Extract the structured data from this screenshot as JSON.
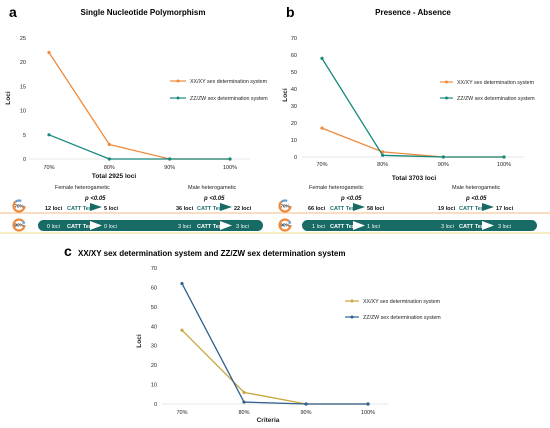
{
  "colors": {
    "xx_xy": "#ef8a3c",
    "zz_zw": "#17887d",
    "xx_xy_c": "#c8a63c",
    "zz_zw_c": "#2f5f8e",
    "bar_teal": "#176b64",
    "orange_line": "#f2a356",
    "yellow_line": "#e3d35c"
  },
  "panels": {
    "a": {
      "label": "a",
      "footer": {
        "total": "Total 2925 loci",
        "female_label": "Female heterogametic",
        "male_label": "Male heterogametic",
        "female_p": "p <0.05",
        "male_p": "p <0.05",
        "female_from": "12 loci",
        "female_to": "5 loci",
        "male_from": "36 loci",
        "male_to": "22 loci",
        "female_from_90": "0 loci",
        "female_to_90": "0 loci",
        "male_from_90": "3 loci",
        "male_to_90": "3 loci"
      }
    },
    "b": {
      "label": "b",
      "footer": {
        "total": "Total 3703 loci",
        "female_label": "Female heterogametic",
        "male_label": "Male heterogametic",
        "female_p": "p <0.05",
        "male_p": "p <0.05",
        "female_from": "66 loci",
        "female_to": "58 loci",
        "male_from": "19 loci",
        "male_to": "17 loci",
        "female_from_90": "1 loci",
        "female_to_90": "1 loci",
        "male_from_90": "3 loci",
        "male_to_90": "3 loci"
      }
    },
    "c": {
      "label": "c"
    }
  },
  "test_label": "CATT Test",
  "pie_labels": [
    "70%",
    "90%"
  ],
  "chart_data": [
    {
      "type": "line",
      "title": "Single Nucleotide Polymorphism",
      "xlabel": "",
      "ylabel": "Loci",
      "categories": [
        "70%",
        "80%",
        "90%",
        "100%"
      ],
      "ylim": [
        0,
        25
      ],
      "yticks": [
        0,
        5,
        10,
        15,
        20,
        25
      ],
      "legend_position": "right",
      "grid": false,
      "series": [
        {
          "name": "XX/XY sex determination system",
          "values": [
            22,
            3,
            0,
            0
          ]
        },
        {
          "name": "ZZ/ZW sex determination system",
          "values": [
            5,
            0,
            0,
            0
          ]
        }
      ]
    },
    {
      "type": "line",
      "title": "Presence - Absence",
      "xlabel": "",
      "ylabel": "Loci",
      "categories": [
        "70%",
        "80%",
        "90%",
        "100%"
      ],
      "ylim": [
        0,
        70
      ],
      "yticks": [
        0,
        10,
        20,
        30,
        40,
        50,
        60,
        70
      ],
      "legend_position": "right",
      "grid": false,
      "series": [
        {
          "name": "XX/XY sex determination system",
          "values": [
            17,
            3,
            0,
            0
          ]
        },
        {
          "name": "ZZ/ZW sex determination system",
          "values": [
            58,
            1,
            0,
            0
          ]
        }
      ]
    },
    {
      "type": "line",
      "title": "XX/XY sex determination system and ZZ/ZW sex determination system",
      "xlabel": "Criteria",
      "ylabel": "Loci",
      "categories": [
        "70%",
        "80%",
        "90%",
        "100%"
      ],
      "ylim": [
        0,
        70
      ],
      "yticks": [
        0,
        10,
        20,
        30,
        40,
        50,
        60,
        70
      ],
      "legend_position": "right",
      "grid": false,
      "series": [
        {
          "name": "XX/XY sex determination system",
          "values": [
            38,
            6,
            0,
            0
          ]
        },
        {
          "name": "ZZ/ZW sex determination system",
          "values": [
            62,
            1,
            0,
            0
          ]
        }
      ]
    }
  ]
}
